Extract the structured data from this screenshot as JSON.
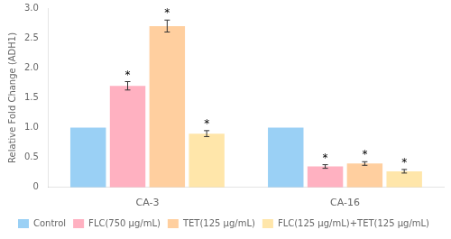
{
  "chart_data": {
    "type": "bar",
    "categories": [
      "CA-3",
      "CA-16"
    ],
    "series": [
      {
        "name": "Control",
        "values": [
          1.0,
          1.0
        ],
        "errors": [
          0.0,
          0.0
        ]
      },
      {
        "name": "FLC(750 μg/mL)",
        "values": [
          1.7,
          0.35
        ],
        "errors": [
          0.07,
          0.03
        ]
      },
      {
        "name": "TET(125 μg/mL)",
        "values": [
          2.7,
          0.4
        ],
        "errors": [
          0.1,
          0.03
        ]
      },
      {
        "name": "FLC(125 μg/mL)+TET(125 μg/mL)",
        "values": [
          0.9,
          0.27
        ],
        "errors": [
          0.05,
          0.03
        ]
      }
    ],
    "annotations": [
      {
        "text": "*",
        "category": "CA-3",
        "series": "FLC(750 μg/mL)"
      },
      {
        "text": "*",
        "category": "CA-3",
        "series": "TET(125 μg/mL)"
      },
      {
        "text": "*",
        "category": "CA-3",
        "series": "FLC(125 μg/mL)+TET(125 μg/mL)"
      },
      {
        "text": "*",
        "category": "CA-16",
        "series": "FLC(750 μg/mL)"
      },
      {
        "text": "*",
        "category": "CA-16",
        "series": "TET(125 μg/mL)"
      },
      {
        "text": "*",
        "category": "CA-16",
        "series": "FLC(125 μg/mL)+TET(125 μg/mL)"
      }
    ],
    "ylabel": "Relative Fold Change (ADH1)",
    "ylim": [
      0,
      3.0
    ],
    "yticks": [
      0,
      0.5,
      {
        "value": 1.0,
        "label": "1.0"
      },
      {
        "value": 1.5,
        "label": "1.5"
      },
      {
        "value": 2.0,
        "label": "2.0"
      },
      2.5,
      {
        "value": 3.0,
        "label": "3.0"
      }
    ],
    "grid": false,
    "legend": "bottom"
  }
}
